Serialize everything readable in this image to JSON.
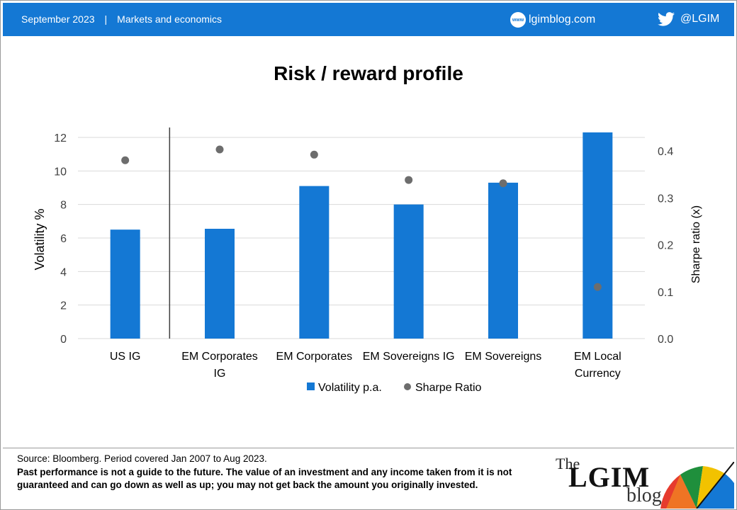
{
  "header": {
    "date": "September 2023",
    "separator": "|",
    "category": "Markets and economics",
    "site": "lgimblog.com",
    "www_label": "www",
    "twitter": "@LGIM",
    "background": "#1478d4"
  },
  "chart_data": {
    "type": "bar",
    "title": "Risk / reward profile",
    "categories": [
      "US IG",
      "EM Corporates IG",
      "EM Corporates",
      "EM Sovereigns IG",
      "EM Sovereigns",
      "EM Local Currency"
    ],
    "category_lines": [
      [
        "US IG"
      ],
      [
        "EM Corporates",
        "IG"
      ],
      [
        "EM Corporates"
      ],
      [
        "EM Sovereigns IG"
      ],
      [
        "EM Sovereigns"
      ],
      [
        "EM Local",
        "Currency"
      ]
    ],
    "series": [
      {
        "name": "Volatility p.a.",
        "type": "bar",
        "axis": "left",
        "color": "#1478d4",
        "values": [
          6.5,
          6.55,
          9.1,
          8.0,
          9.3,
          12.3
        ]
      },
      {
        "name": "Sharpe Ratio",
        "type": "scatter",
        "axis": "right",
        "color": "#6d6d6d",
        "values": [
          0.38,
          0.403,
          0.392,
          0.338,
          0.331,
          0.11
        ]
      }
    ],
    "ylabel": "Volatility %",
    "y2label": "Sharpe ratio (x)",
    "ylim": [
      0,
      12
    ],
    "y2lim": [
      0,
      0.4
    ],
    "yticks": [
      "0",
      "2",
      "4",
      "6",
      "8",
      "10",
      "12"
    ],
    "y2ticks": [
      "0.0",
      "0.1",
      "0.2",
      "0.3",
      "0.4"
    ],
    "grid": true,
    "legend_position": "bottom",
    "divider_after_category": "US IG"
  },
  "footer": {
    "source": "Source: Bloomberg. Period covered Jan 2007 to Aug 2023.",
    "disclaimer": "Past performance is not a guide to the future. The value of an investment and any income taken from it is not guaranteed and can go down as well as up; you may not get back the amount you originally invested.",
    "logo_the": "The",
    "logo_main": "LGIM",
    "logo_blog": "blog"
  }
}
